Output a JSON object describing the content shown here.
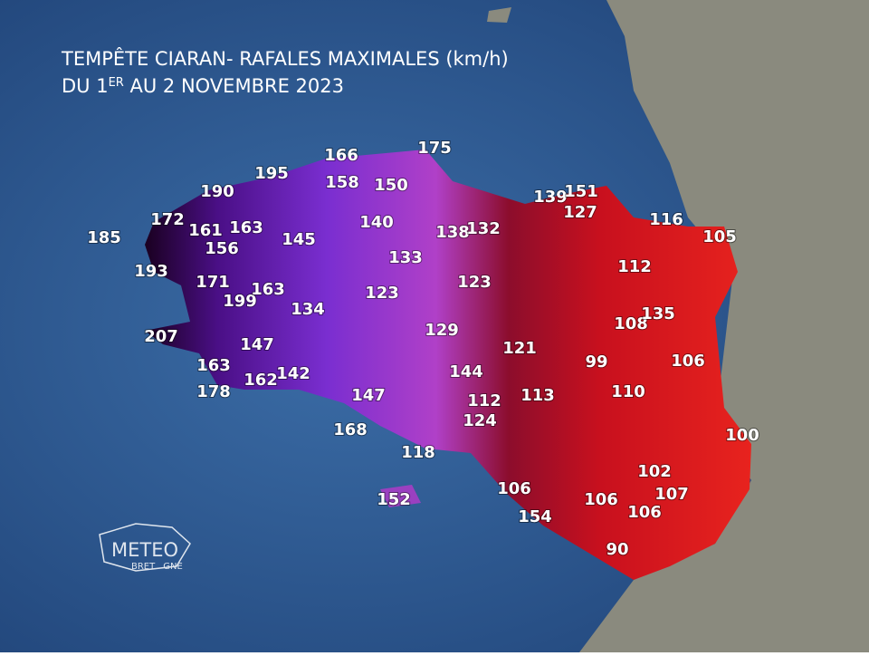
{
  "title": {
    "line1": "TEMPÊTE CIARAN- RAFALES MAXIMALES (km/h)",
    "line2_start": "DU 1",
    "line2_sup": "ER",
    "line2_end": " AU 2 NOVEMBRE 2023"
  },
  "gusts": [
    185,
    193,
    172,
    190,
    195,
    161,
    163,
    156,
    145,
    171,
    199,
    163,
    134,
    207,
    147,
    163,
    178,
    162,
    142,
    147,
    168,
    118,
    152,
    166,
    158,
    150,
    175,
    140,
    133,
    138,
    132,
    123,
    123,
    129,
    144,
    121,
    112,
    124,
    113,
    139,
    151,
    127,
    116,
    105,
    112,
    108,
    135,
    99,
    106,
    110,
    100,
    102,
    107,
    106,
    154,
    106,
    106,
    90
  ],
  "logo": {
    "name": "METEO",
    "sub_start": "BRET",
    "sub_end": "GNE"
  }
}
